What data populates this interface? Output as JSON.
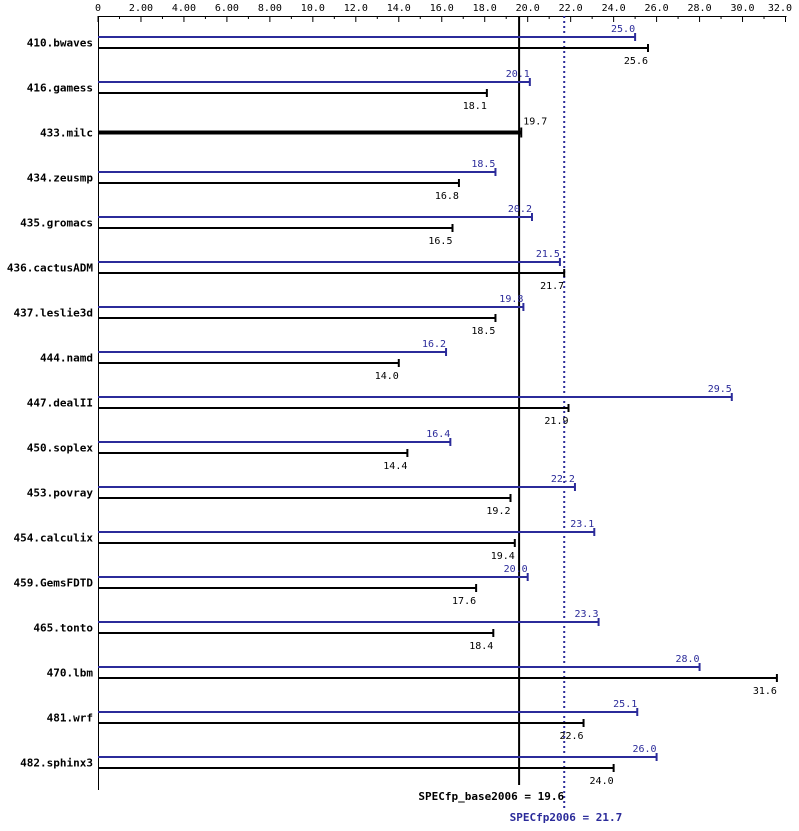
{
  "chart_data": {
    "type": "bar",
    "orientation": "horizontal",
    "xlim": [
      0,
      32.0
    ],
    "ticks": [
      "0",
      "2.00",
      "4.00",
      "6.00",
      "8.00",
      "10.0",
      "12.0",
      "14.0",
      "16.0",
      "18.0",
      "20.0",
      "22.0",
      "24.0",
      "26.0",
      "28.0",
      "30.0",
      "32.0"
    ],
    "tick_values": [
      0,
      2,
      4,
      6,
      8,
      10,
      12,
      14,
      16,
      18,
      20,
      22,
      24,
      26,
      28,
      30,
      32
    ],
    "colors": {
      "peak": "#2b2b9a",
      "base": "#000000"
    },
    "categories": [
      "410.bwaves",
      "416.gamess",
      "433.milc",
      "434.zeusmp",
      "435.gromacs",
      "436.cactusADM",
      "437.leslie3d",
      "444.namd",
      "447.dealII",
      "450.soplex",
      "453.povray",
      "454.calculix",
      "459.GemsFDTD",
      "465.tonto",
      "470.lbm",
      "481.wrf",
      "482.sphinx3"
    ],
    "series": [
      {
        "values": [
          25.0,
          20.1,
          19.7,
          18.5,
          20.2,
          21.5,
          19.8,
          16.2,
          29.5,
          16.4,
          22.2,
          23.1,
          20.0,
          23.3,
          28.0,
          25.1,
          26.0
        ],
        "labels": [
          "25.0",
          "20.1",
          "",
          "18.5",
          "20.2",
          "21.5",
          "19.8",
          "16.2",
          "29.5",
          "16.4",
          "22.2",
          "23.1",
          "20.0",
          "23.3",
          "28.0",
          "25.1",
          "26.0"
        ]
      },
      {
        "values": [
          25.6,
          18.1,
          19.7,
          16.8,
          16.5,
          21.7,
          18.5,
          14.0,
          21.9,
          14.4,
          19.2,
          19.4,
          17.6,
          18.4,
          31.6,
          22.6,
          24.0
        ],
        "labels": [
          "25.6",
          "18.1",
          "19.7",
          "16.8",
          "16.5",
          "21.7",
          "18.5",
          "14.0",
          "21.9",
          "14.4",
          "19.2",
          "19.4",
          "17.6",
          "18.4",
          "31.6",
          "22.6",
          "24.0"
        ]
      }
    ],
    "reference_lines": [
      {
        "value": 19.6,
        "label": "SPECfp_base2006 = 19.6",
        "style": "solid",
        "color": "#000000"
      },
      {
        "value": 21.7,
        "label": "SPECfp2006 = 21.7",
        "style": "dotted",
        "color": "#2b2b9a"
      }
    ]
  }
}
